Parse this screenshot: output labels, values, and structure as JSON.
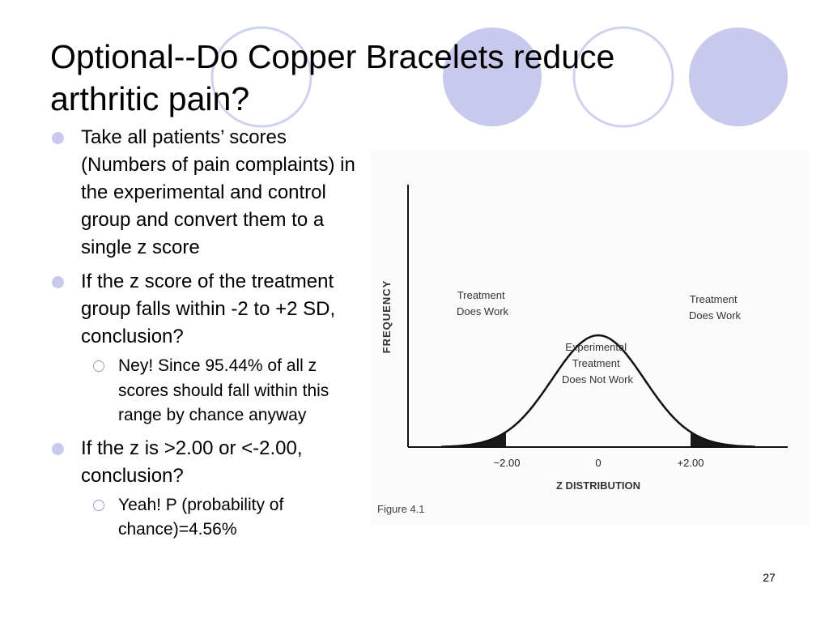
{
  "slide": {
    "title": "Optional--Do Copper Bracelets reduce arthritic pain?",
    "page_number": "27",
    "accent_color": "#c8c9ec"
  },
  "bullets": [
    {
      "text": "Take all patients’ scores (Numbers of pain complaints) in the experimental and control group and convert them to a single z score"
    },
    {
      "text": "If the z score of the treatment group falls within -2 to +2 SD, conclusion?",
      "sub": "Ney! Since 95.44% of all z scores should fall within this range by chance anyway"
    },
    {
      "text": "If the z is >2.00 or <-2.00, conclusion?",
      "sub": "Yeah! P (probability of chance)=4.56%"
    }
  ],
  "figure": {
    "y_axis_label": "FREQUENCY",
    "x_axis_label": "Z DISTRIBUTION",
    "caption": "Figure 4.1",
    "ticks": [
      "−2.00",
      "0",
      "+2.00"
    ],
    "left_region_label": [
      "Treatment",
      "Does Work"
    ],
    "right_region_label": [
      "Treatment",
      "Does Work"
    ],
    "center_label": [
      "Experimental",
      "Treatment",
      "Does Not Work"
    ]
  }
}
